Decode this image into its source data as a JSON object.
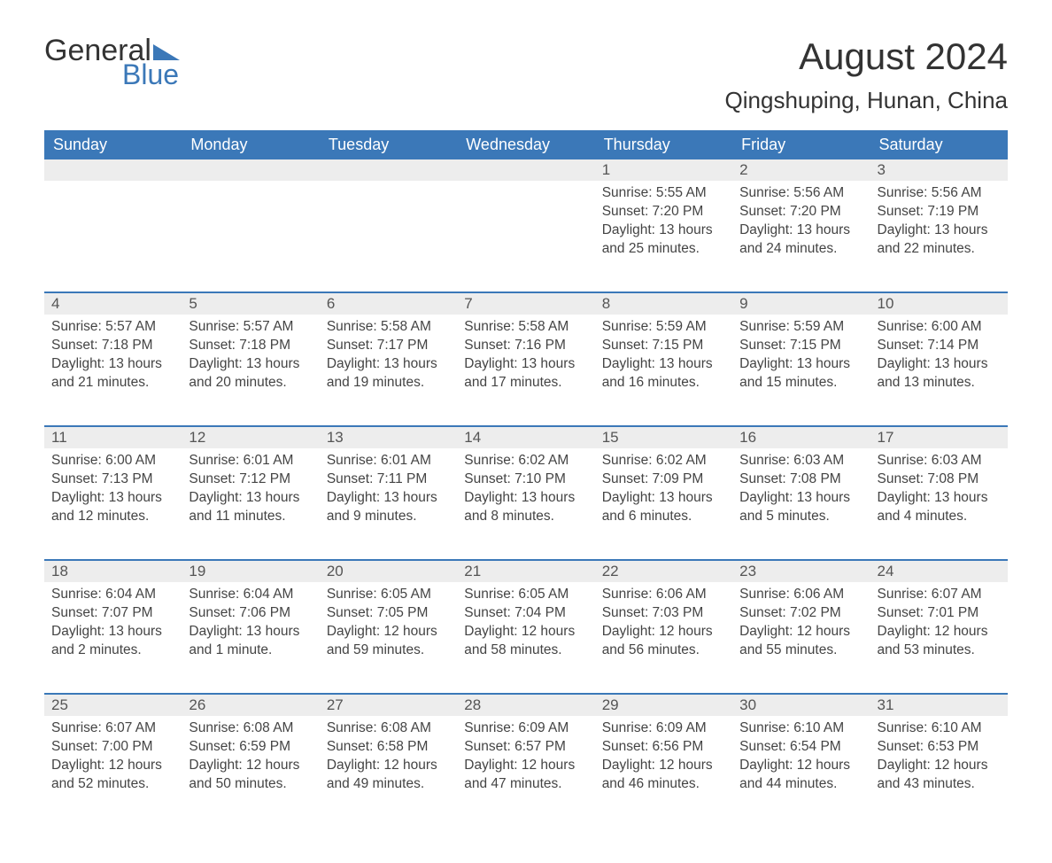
{
  "logo": {
    "text1": "General",
    "text2": "Blue",
    "tri_color": "#3b78b8"
  },
  "title": "August 2024",
  "location": "Qingshuping, Hunan, China",
  "header_bg": "#3b78b8",
  "header_fg": "#ffffff",
  "daynum_bg": "#ededed",
  "divider_color": "#3b78b8",
  "text_color": "#444444",
  "columns": [
    "Sunday",
    "Monday",
    "Tuesday",
    "Wednesday",
    "Thursday",
    "Friday",
    "Saturday"
  ],
  "weeks": [
    [
      null,
      null,
      null,
      null,
      {
        "n": "1",
        "sr": "5:55 AM",
        "ss": "7:20 PM",
        "d": "13 hours and 25 minutes."
      },
      {
        "n": "2",
        "sr": "5:56 AM",
        "ss": "7:20 PM",
        "d": "13 hours and 24 minutes."
      },
      {
        "n": "3",
        "sr": "5:56 AM",
        "ss": "7:19 PM",
        "d": "13 hours and 22 minutes."
      }
    ],
    [
      {
        "n": "4",
        "sr": "5:57 AM",
        "ss": "7:18 PM",
        "d": "13 hours and 21 minutes."
      },
      {
        "n": "5",
        "sr": "5:57 AM",
        "ss": "7:18 PM",
        "d": "13 hours and 20 minutes."
      },
      {
        "n": "6",
        "sr": "5:58 AM",
        "ss": "7:17 PM",
        "d": "13 hours and 19 minutes."
      },
      {
        "n": "7",
        "sr": "5:58 AM",
        "ss": "7:16 PM",
        "d": "13 hours and 17 minutes."
      },
      {
        "n": "8",
        "sr": "5:59 AM",
        "ss": "7:15 PM",
        "d": "13 hours and 16 minutes."
      },
      {
        "n": "9",
        "sr": "5:59 AM",
        "ss": "7:15 PM",
        "d": "13 hours and 15 minutes."
      },
      {
        "n": "10",
        "sr": "6:00 AM",
        "ss": "7:14 PM",
        "d": "13 hours and 13 minutes."
      }
    ],
    [
      {
        "n": "11",
        "sr": "6:00 AM",
        "ss": "7:13 PM",
        "d": "13 hours and 12 minutes."
      },
      {
        "n": "12",
        "sr": "6:01 AM",
        "ss": "7:12 PM",
        "d": "13 hours and 11 minutes."
      },
      {
        "n": "13",
        "sr": "6:01 AM",
        "ss": "7:11 PM",
        "d": "13 hours and 9 minutes."
      },
      {
        "n": "14",
        "sr": "6:02 AM",
        "ss": "7:10 PM",
        "d": "13 hours and 8 minutes."
      },
      {
        "n": "15",
        "sr": "6:02 AM",
        "ss": "7:09 PM",
        "d": "13 hours and 6 minutes."
      },
      {
        "n": "16",
        "sr": "6:03 AM",
        "ss": "7:08 PM",
        "d": "13 hours and 5 minutes."
      },
      {
        "n": "17",
        "sr": "6:03 AM",
        "ss": "7:08 PM",
        "d": "13 hours and 4 minutes."
      }
    ],
    [
      {
        "n": "18",
        "sr": "6:04 AM",
        "ss": "7:07 PM",
        "d": "13 hours and 2 minutes."
      },
      {
        "n": "19",
        "sr": "6:04 AM",
        "ss": "7:06 PM",
        "d": "13 hours and 1 minute."
      },
      {
        "n": "20",
        "sr": "6:05 AM",
        "ss": "7:05 PM",
        "d": "12 hours and 59 minutes."
      },
      {
        "n": "21",
        "sr": "6:05 AM",
        "ss": "7:04 PM",
        "d": "12 hours and 58 minutes."
      },
      {
        "n": "22",
        "sr": "6:06 AM",
        "ss": "7:03 PM",
        "d": "12 hours and 56 minutes."
      },
      {
        "n": "23",
        "sr": "6:06 AM",
        "ss": "7:02 PM",
        "d": "12 hours and 55 minutes."
      },
      {
        "n": "24",
        "sr": "6:07 AM",
        "ss": "7:01 PM",
        "d": "12 hours and 53 minutes."
      }
    ],
    [
      {
        "n": "25",
        "sr": "6:07 AM",
        "ss": "7:00 PM",
        "d": "12 hours and 52 minutes."
      },
      {
        "n": "26",
        "sr": "6:08 AM",
        "ss": "6:59 PM",
        "d": "12 hours and 50 minutes."
      },
      {
        "n": "27",
        "sr": "6:08 AM",
        "ss": "6:58 PM",
        "d": "12 hours and 49 minutes."
      },
      {
        "n": "28",
        "sr": "6:09 AM",
        "ss": "6:57 PM",
        "d": "12 hours and 47 minutes."
      },
      {
        "n": "29",
        "sr": "6:09 AM",
        "ss": "6:56 PM",
        "d": "12 hours and 46 minutes."
      },
      {
        "n": "30",
        "sr": "6:10 AM",
        "ss": "6:54 PM",
        "d": "12 hours and 44 minutes."
      },
      {
        "n": "31",
        "sr": "6:10 AM",
        "ss": "6:53 PM",
        "d": "12 hours and 43 minutes."
      }
    ]
  ],
  "labels": {
    "sunrise": "Sunrise: ",
    "sunset": "Sunset: ",
    "daylight": "Daylight: "
  }
}
